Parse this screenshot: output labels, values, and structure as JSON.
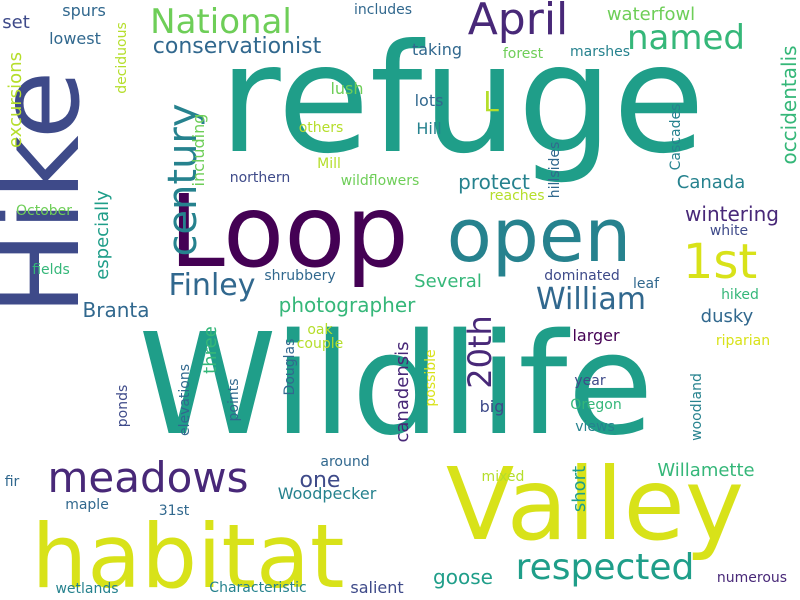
{
  "colors": {
    "background": "#ffffff",
    "palette": {
      "dark_purple": "#440154",
      "indigo": "#482878",
      "deep_blue": "#3e4a89",
      "steel_blue": "#31688e",
      "teal_blue": "#26828e",
      "teal": "#1f9e89",
      "green": "#35b779",
      "light_green": "#6ece58",
      "lime": "#b5de2b",
      "yellow": "#d8e219"
    }
  },
  "words": [
    {
      "text": "refuge",
      "color": "#1f9e89"
    },
    {
      "text": "Loop",
      "color": "#440154"
    },
    {
      "text": "Wildlife",
      "color": "#1f9e89"
    },
    {
      "text": "Hike",
      "color": "#3e4a89"
    },
    {
      "text": "Valley",
      "color": "#d8e219"
    },
    {
      "text": "habitat",
      "color": "#d8e219"
    },
    {
      "text": "open",
      "color": "#26828e"
    },
    {
      "text": "meadows",
      "color": "#482878"
    },
    {
      "text": "April",
      "color": "#482878"
    },
    {
      "text": "1st",
      "color": "#d8e219"
    },
    {
      "text": "National",
      "color": "#6ece58"
    },
    {
      "text": "named",
      "color": "#35b779"
    },
    {
      "text": "century",
      "color": "#26828e"
    },
    {
      "text": "Finley",
      "color": "#31688e"
    },
    {
      "text": "William",
      "color": "#31688e"
    },
    {
      "text": "20th",
      "color": "#482878"
    },
    {
      "text": "respected",
      "color": "#1f9e89"
    },
    {
      "text": "L",
      "color": "#b5de2b"
    },
    {
      "text": "waterfowl",
      "color": "#6ece58"
    },
    {
      "text": "occidentalis",
      "color": "#35b779"
    },
    {
      "text": "excursions",
      "color": "#b5de2b"
    },
    {
      "text": "conservationist",
      "color": "#31688e"
    },
    {
      "text": "wintering",
      "color": "#482878"
    },
    {
      "text": "protect",
      "color": "#26828e"
    },
    {
      "text": "Canada",
      "color": "#26828e"
    },
    {
      "text": "photographer",
      "color": "#35b779"
    },
    {
      "text": "Several",
      "color": "#35b779"
    },
    {
      "text": "Branta",
      "color": "#31688e"
    },
    {
      "text": "canadensis",
      "color": "#482878"
    },
    {
      "text": "especially",
      "color": "#1f9e89"
    },
    {
      "text": "including",
      "color": "#6ece58"
    },
    {
      "text": "dusky",
      "color": "#31688e"
    },
    {
      "text": "three",
      "color": "#35b779"
    },
    {
      "text": "Willamette",
      "color": "#35b779"
    },
    {
      "text": "short",
      "color": "#1f9e89"
    },
    {
      "text": "goose",
      "color": "#1f9e89"
    },
    {
      "text": "one",
      "color": "#3e4a89"
    },
    {
      "text": "set",
      "color": "#3e4a89"
    },
    {
      "text": "spurs",
      "color": "#31688e"
    },
    {
      "text": "lowest",
      "color": "#31688e"
    },
    {
      "text": "deciduous",
      "color": "#b5de2b"
    },
    {
      "text": "includes",
      "color": "#31688e"
    },
    {
      "text": "taking",
      "color": "#31688e"
    },
    {
      "text": "forest",
      "color": "#6ece58"
    },
    {
      "text": "marshes",
      "color": "#26828e"
    },
    {
      "text": "lush",
      "color": "#6ece58"
    },
    {
      "text": "others",
      "color": "#b5de2b"
    },
    {
      "text": "lots",
      "color": "#31688e"
    },
    {
      "text": "Hill",
      "color": "#26828e"
    },
    {
      "text": "Cascades",
      "color": "#26828e"
    },
    {
      "text": "hillsides",
      "color": "#31688e"
    },
    {
      "text": "Mill",
      "color": "#b5de2b"
    },
    {
      "text": "wildflowers",
      "color": "#6ece58"
    },
    {
      "text": "northern",
      "color": "#3e4a89"
    },
    {
      "text": "reaches",
      "color": "#b5de2b"
    },
    {
      "text": "October",
      "color": "#6ece58"
    },
    {
      "text": "white",
      "color": "#3e4a89"
    },
    {
      "text": "fields",
      "color": "#35b779"
    },
    {
      "text": "shrubbery",
      "color": "#31688e"
    },
    {
      "text": "dominated",
      "color": "#3e4a89"
    },
    {
      "text": "leaf",
      "color": "#31688e"
    },
    {
      "text": "hiked",
      "color": "#35b779"
    },
    {
      "text": "oak",
      "color": "#b5de2b"
    },
    {
      "text": "couple",
      "color": "#b5de2b"
    },
    {
      "text": "larger",
      "color": "#440154"
    },
    {
      "text": "riparian",
      "color": "#d8e219"
    },
    {
      "text": "elevations",
      "color": "#31688e"
    },
    {
      "text": "points",
      "color": "#31688e"
    },
    {
      "text": "Douglas",
      "color": "#31688e"
    },
    {
      "text": "possible",
      "color": "#d8e219"
    },
    {
      "text": "year",
      "color": "#3e4a89"
    },
    {
      "text": "woodland",
      "color": "#26828e"
    },
    {
      "text": "ponds",
      "color": "#3e4a89"
    },
    {
      "text": "big",
      "color": "#3e4a89"
    },
    {
      "text": "Oregon",
      "color": "#35b779"
    },
    {
      "text": "views",
      "color": "#26828e"
    },
    {
      "text": "around",
      "color": "#31688e"
    },
    {
      "text": "fir",
      "color": "#31688e"
    },
    {
      "text": "mixed",
      "color": "#b5de2b"
    },
    {
      "text": "Woodpecker",
      "color": "#26828e"
    },
    {
      "text": "maple",
      "color": "#31688e"
    },
    {
      "text": "31st",
      "color": "#31688e"
    },
    {
      "text": "wetlands",
      "color": "#26828e"
    },
    {
      "text": "Characteristic",
      "color": "#26828e"
    },
    {
      "text": "salient",
      "color": "#3e4a89"
    },
    {
      "text": "numerous",
      "color": "#482878"
    }
  ]
}
